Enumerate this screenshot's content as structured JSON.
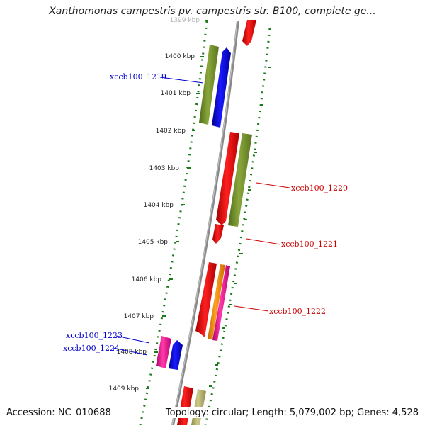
{
  "title": "Xanthomonas campestris pv. campestris str. B100, complete ge...",
  "footer": {
    "accession": "Accession: NC_010688",
    "summary": "Topology: circular; Length: 5,079,002 bp; Genes: 4,528"
  },
  "ticks": [
    "1399 kbp",
    "1400 kbp",
    "1401 kbp",
    "1402 kbp",
    "1403 kbp",
    "1404 kbp",
    "1405 kbp",
    "1406 kbp",
    "1407 kbp",
    "1408 kbp",
    "1409 kbp"
  ],
  "gene_labels": [
    "xccb100_1219",
    "xccb100_1220",
    "xccb100_1221",
    "xccb100_1222",
    "xccb100_1223",
    "xccb100_1224"
  ],
  "colors": {
    "forward_label": "#0000cc",
    "reverse_label": "#cc0000",
    "backbone": "#888888",
    "gc_track": "#1a7a1a"
  }
}
